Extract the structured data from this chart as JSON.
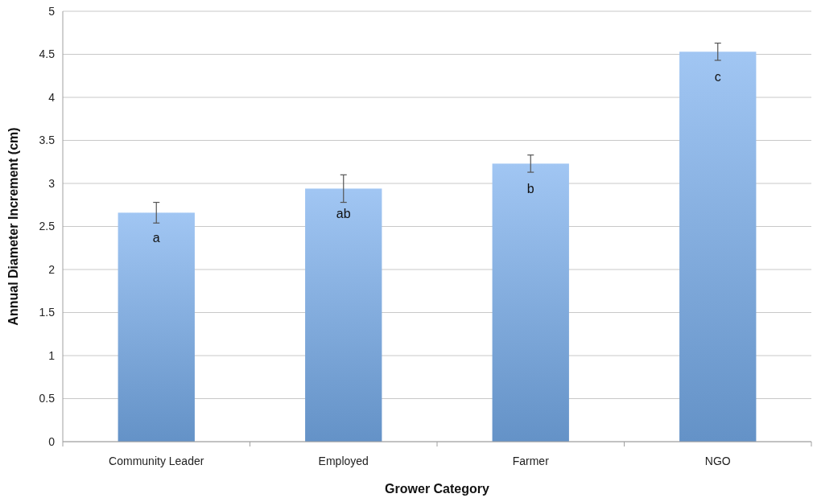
{
  "chart_data": {
    "type": "bar",
    "xlabel": "Grower Category",
    "ylabel": "Annual Diameter Increment (cm)",
    "categories": [
      "Community Leader",
      "Employed",
      "Farmer",
      "NGO"
    ],
    "values": [
      2.66,
      2.94,
      3.23,
      4.53
    ],
    "errors": [
      0.12,
      0.16,
      0.1,
      0.1
    ],
    "color": "#78aeee",
    "ylim": [
      0,
      5
    ],
    "yticks": [
      0,
      0.5,
      1,
      1.5,
      2,
      2.5,
      3,
      3.5,
      4,
      4.5,
      5
    ],
    "grid": "y",
    "annotations": [
      "a",
      "ab",
      "b",
      "c"
    ]
  }
}
